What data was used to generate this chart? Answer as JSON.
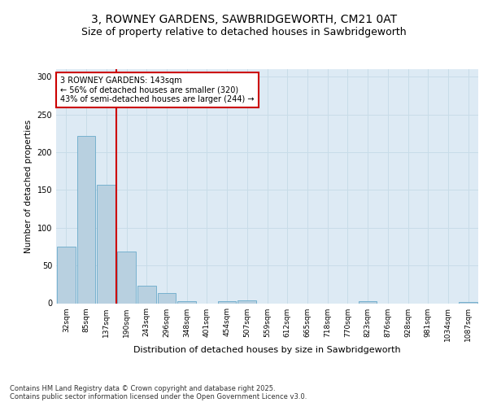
{
  "title1": "3, ROWNEY GARDENS, SAWBRIDGEWORTH, CM21 0AT",
  "title2": "Size of property relative to detached houses in Sawbridgeworth",
  "xlabel": "Distribution of detached houses by size in Sawbridgeworth",
  "ylabel": "Number of detached properties",
  "bin_labels": [
    "32sqm",
    "85sqm",
    "137sqm",
    "190sqm",
    "243sqm",
    "296sqm",
    "348sqm",
    "401sqm",
    "454sqm",
    "507sqm",
    "559sqm",
    "612sqm",
    "665sqm",
    "718sqm",
    "770sqm",
    "823sqm",
    "876sqm",
    "928sqm",
    "981sqm",
    "1034sqm",
    "1087sqm"
  ],
  "bar_heights": [
    75,
    222,
    157,
    68,
    23,
    14,
    3,
    0,
    3,
    4,
    0,
    0,
    0,
    0,
    0,
    3,
    0,
    0,
    0,
    0,
    2
  ],
  "bar_color": "#b8d0e0",
  "bar_edge_color": "#6aaacb",
  "grid_color": "#c8dce8",
  "background_color": "#ddeaf4",
  "annotation_box_color": "#cc0000",
  "property_line_bin": 2,
  "annotation_text": "3 ROWNEY GARDENS: 143sqm\n← 56% of detached houses are smaller (320)\n43% of semi-detached houses are larger (244) →",
  "ylim": [
    0,
    310
  ],
  "yticks": [
    0,
    50,
    100,
    150,
    200,
    250,
    300
  ],
  "footer_text": "Contains HM Land Registry data © Crown copyright and database right 2025.\nContains public sector information licensed under the Open Government Licence v3.0.",
  "title1_fontsize": 10,
  "title2_fontsize": 9,
  "axis_label_fontsize": 7.5,
  "tick_fontsize": 6.5,
  "annotation_fontsize": 7,
  "footer_fontsize": 6
}
